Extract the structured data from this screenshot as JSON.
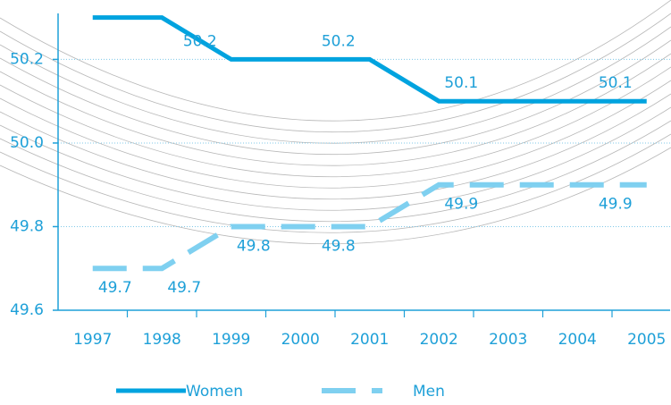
{
  "chart_data": {
    "type": "line",
    "categories": [
      "1997",
      "1998",
      "1999",
      "2000",
      "2001",
      "2002",
      "2003",
      "2004",
      "2005"
    ],
    "series": [
      {
        "name": "Women",
        "color": "#00a3df",
        "dashed": false,
        "values": [
          50.3,
          50.3,
          50.2,
          50.2,
          50.2,
          50.1,
          50.1,
          50.1,
          50.1
        ],
        "value_labels": [
          null,
          null,
          "50.2",
          null,
          "50.2",
          "50.1",
          null,
          null,
          "50.1"
        ]
      },
      {
        "name": "Men",
        "color": "#7fd0f0",
        "dashed": true,
        "values": [
          49.7,
          49.7,
          49.8,
          49.8,
          49.8,
          49.9,
          49.9,
          49.9,
          49.9
        ],
        "value_labels": [
          "49.7",
          "49.7",
          "49.8",
          null,
          "49.8",
          "49.9",
          null,
          null,
          "49.9"
        ]
      }
    ],
    "ylim": [
      49.6,
      50.31
    ],
    "yticks": [
      {
        "value": 49.6,
        "label": "49.6"
      },
      {
        "value": 49.8,
        "label": "49.8"
      },
      {
        "value": 50.0,
        "label": "50.0"
      },
      {
        "value": 50.2,
        "label": "50.2"
      }
    ],
    "grid": true
  }
}
